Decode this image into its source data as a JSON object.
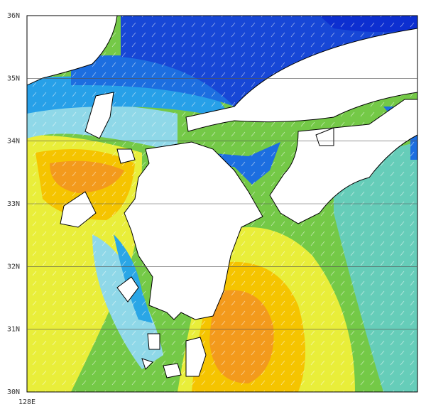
{
  "map": {
    "lat_labels": [
      "36N",
      "35N",
      "34N",
      "33N",
      "32N",
      "31N",
      "30N"
    ],
    "lon_labels": [
      "128E"
    ]
  }
}
